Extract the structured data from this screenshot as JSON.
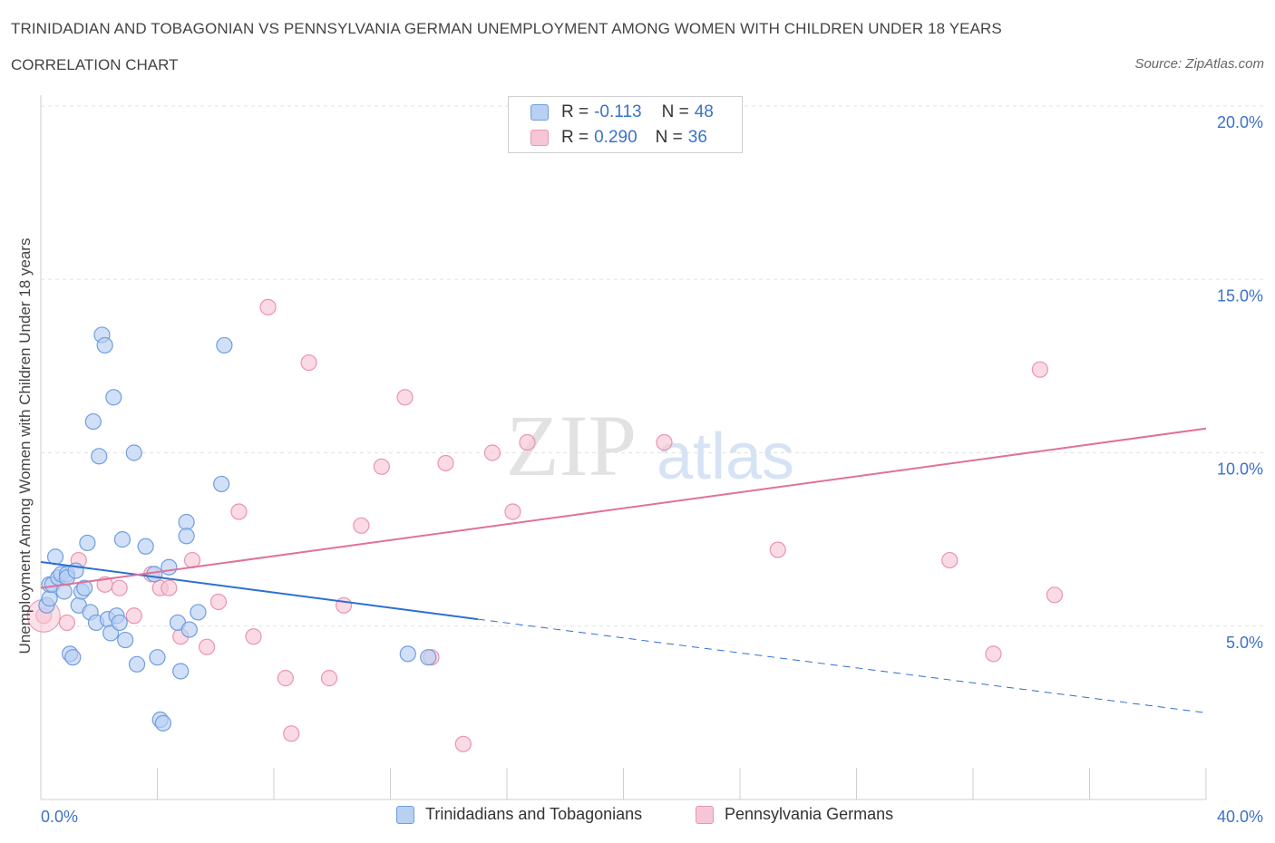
{
  "title": "TRINIDADIAN AND TOBAGONIAN VS PENNSYLVANIA GERMAN UNEMPLOYMENT AMONG WOMEN WITH CHILDREN UNDER 18 YEARS",
  "subtitle": "CORRELATION CHART",
  "source": "Source: ZipAtlas.com",
  "watermark": {
    "zip": "ZIP",
    "atlas": "atlas"
  },
  "legend": {
    "rows": [
      {
        "r_label": "R =",
        "r_value": "-0.113",
        "n_label": "N =",
        "n_value": "48"
      },
      {
        "r_label": "R =",
        "r_value": "0.290",
        "n_label": "N =",
        "n_value": "36"
      }
    ]
  },
  "chart_data": {
    "type": "scatter",
    "title": "TRINIDADIAN AND TOBAGONIAN VS PENNSYLVANIA GERMAN UNEMPLOYMENT AMONG WOMEN WITH CHILDREN UNDER 18 YEARS",
    "xlabel": "",
    "ylabel": "Unemployment Among Women with Children Under 18 years",
    "xlim": [
      0,
      40
    ],
    "ylim": [
      0,
      20
    ],
    "x_tick_labels": [
      "0.0%",
      "40.0%"
    ],
    "y_ticks": [
      {
        "value": 5,
        "label": "5.0%"
      },
      {
        "value": 10,
        "label": "10.0%"
      },
      {
        "value": 15,
        "label": "15.0%"
      },
      {
        "value": 20,
        "label": "20.0%"
      }
    ],
    "grid": true,
    "colors": {
      "blue_fill": "#b8d0f2",
      "blue_stroke": "#6f9ee0",
      "blue_line": "#2d6fd1",
      "pink_fill": "#f7c6d6",
      "pink_stroke": "#e995b0",
      "pink_line": "#e0719a",
      "axis_text": "#3a72c9"
    },
    "series": [
      {
        "name": "Trinidadians and Tobagonians",
        "color": "blue",
        "points": [
          [
            0.2,
            5.6
          ],
          [
            0.3,
            5.8
          ],
          [
            0.3,
            6.2
          ],
          [
            0.4,
            6.2
          ],
          [
            0.5,
            7.0
          ],
          [
            0.6,
            6.4
          ],
          [
            0.7,
            6.5
          ],
          [
            0.8,
            6.0
          ],
          [
            0.9,
            6.5
          ],
          [
            0.9,
            6.4
          ],
          [
            1.0,
            4.2
          ],
          [
            1.1,
            4.1
          ],
          [
            1.2,
            6.6
          ],
          [
            1.3,
            5.6
          ],
          [
            1.4,
            6.0
          ],
          [
            1.5,
            6.1
          ],
          [
            1.6,
            7.4
          ],
          [
            1.7,
            5.4
          ],
          [
            1.8,
            10.9
          ],
          [
            1.9,
            5.1
          ],
          [
            2.0,
            9.9
          ],
          [
            2.1,
            13.4
          ],
          [
            2.2,
            13.1
          ],
          [
            2.3,
            5.2
          ],
          [
            2.4,
            4.8
          ],
          [
            2.5,
            11.6
          ],
          [
            2.6,
            5.3
          ],
          [
            2.7,
            5.1
          ],
          [
            2.8,
            7.5
          ],
          [
            2.9,
            4.6
          ],
          [
            3.2,
            10.0
          ],
          [
            3.3,
            3.9
          ],
          [
            3.6,
            7.3
          ],
          [
            3.9,
            6.5
          ],
          [
            4.0,
            4.1
          ],
          [
            4.1,
            2.3
          ],
          [
            4.2,
            2.2
          ],
          [
            4.4,
            6.7
          ],
          [
            4.7,
            5.1
          ],
          [
            4.8,
            3.7
          ],
          [
            5.0,
            8.0
          ],
          [
            5.0,
            7.6
          ],
          [
            5.1,
            4.9
          ],
          [
            5.4,
            5.4
          ],
          [
            6.2,
            9.1
          ],
          [
            6.3,
            13.1
          ],
          [
            12.6,
            4.2
          ],
          [
            13.3,
            4.1
          ]
        ],
        "regression": {
          "x0": 0,
          "y0": 6.85,
          "x1": 15,
          "y1": 5.2,
          "dashed_x1": 40,
          "dashed_y1": 2.5
        }
      },
      {
        "name": "Pennsylvania Germans",
        "color": "pink",
        "points": [
          [
            0.1,
            5.3
          ],
          [
            0.9,
            5.1
          ],
          [
            1.3,
            6.9
          ],
          [
            2.2,
            6.2
          ],
          [
            2.7,
            6.1
          ],
          [
            3.2,
            5.3
          ],
          [
            3.8,
            6.5
          ],
          [
            4.1,
            6.1
          ],
          [
            4.4,
            6.1
          ],
          [
            4.8,
            4.7
          ],
          [
            5.2,
            6.9
          ],
          [
            5.7,
            4.4
          ],
          [
            6.1,
            5.7
          ],
          [
            6.8,
            8.3
          ],
          [
            7.3,
            4.7
          ],
          [
            7.8,
            14.2
          ],
          [
            8.4,
            3.5
          ],
          [
            8.6,
            1.9
          ],
          [
            9.2,
            12.6
          ],
          [
            9.9,
            3.5
          ],
          [
            10.4,
            5.6
          ],
          [
            11.0,
            7.9
          ],
          [
            11.7,
            9.6
          ],
          [
            12.5,
            11.6
          ],
          [
            13.4,
            4.1
          ],
          [
            13.9,
            9.7
          ],
          [
            14.5,
            1.6
          ],
          [
            15.5,
            10.0
          ],
          [
            16.2,
            8.3
          ],
          [
            16.7,
            10.3
          ],
          [
            21.4,
            10.3
          ],
          [
            25.3,
            7.2
          ],
          [
            31.2,
            6.9
          ],
          [
            32.7,
            4.2
          ],
          [
            34.3,
            12.4
          ],
          [
            34.8,
            5.9
          ]
        ],
        "regression": {
          "x0": 0,
          "y0": 6.1,
          "x1": 40,
          "y1": 10.7
        }
      }
    ]
  },
  "bottom_legend": [
    "Trinidadians and Tobagonians",
    "Pennsylvania Germans"
  ]
}
